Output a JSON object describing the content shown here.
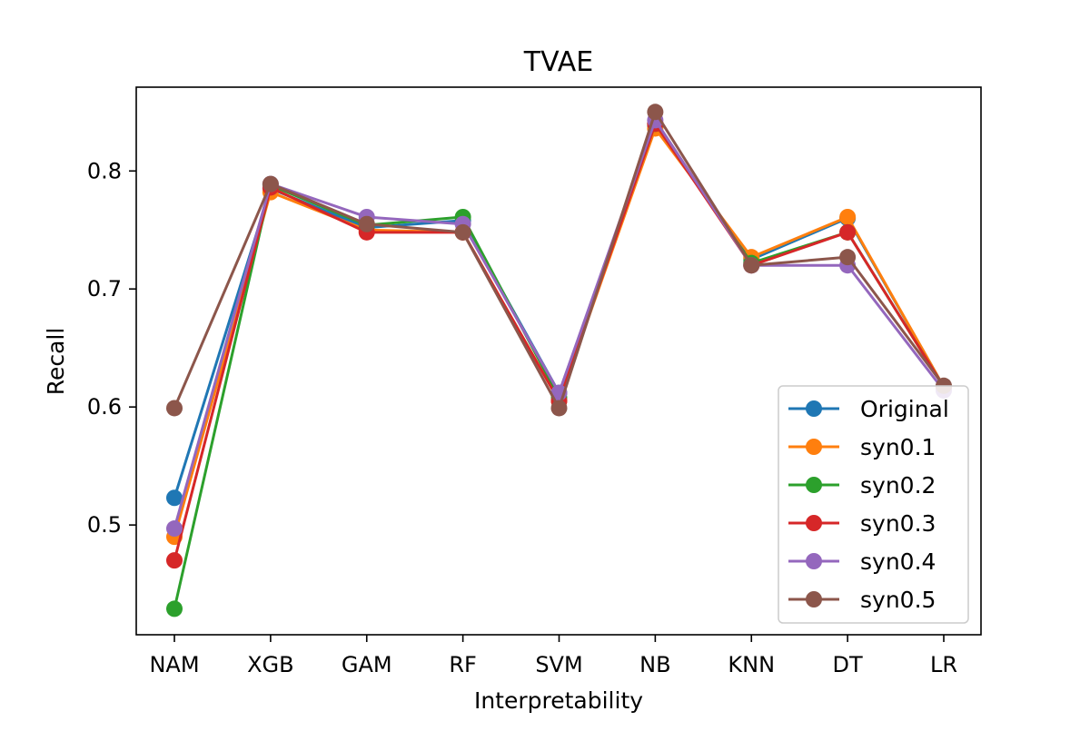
{
  "chart_data": {
    "type": "line",
    "title": "TVAE",
    "xlabel": "Interpretability",
    "ylabel": "Recall",
    "categories": [
      "NAM",
      "XGB",
      "GAM",
      "RF",
      "SVM",
      "NB",
      "KNN",
      "DT",
      "LR"
    ],
    "ylim": [
      0.407,
      0.871
    ],
    "yticks": [
      0.5,
      0.6,
      0.7,
      0.8
    ],
    "ytick_labels": [
      "0.5",
      "0.6",
      "0.7",
      "0.8"
    ],
    "grid": false,
    "legend_position": "lower-right",
    "series": [
      {
        "name": "Original",
        "color": "#1f77b4",
        "values": [
          0.523,
          0.785,
          0.752,
          0.758,
          0.612,
          0.838,
          0.725,
          0.76,
          0.617
        ]
      },
      {
        "name": "syn0.1",
        "color": "#ff7f0e",
        "values": [
          0.49,
          0.782,
          0.75,
          0.748,
          0.605,
          0.836,
          0.727,
          0.761,
          0.617
        ]
      },
      {
        "name": "syn0.2",
        "color": "#2ca02c",
        "values": [
          0.429,
          0.788,
          0.754,
          0.761,
          0.608,
          0.84,
          0.722,
          0.748,
          0.617
        ]
      },
      {
        "name": "syn0.3",
        "color": "#d62728",
        "values": [
          0.47,
          0.786,
          0.748,
          0.748,
          0.605,
          0.84,
          0.72,
          0.748,
          0.617
        ]
      },
      {
        "name": "syn0.4",
        "color": "#9467bd",
        "values": [
          0.497,
          0.789,
          0.761,
          0.755,
          0.612,
          0.843,
          0.72,
          0.72,
          0.614
        ]
      },
      {
        "name": "syn0.5",
        "color": "#8c564b",
        "values": [
          0.599,
          0.789,
          0.755,
          0.748,
          0.599,
          0.85,
          0.72,
          0.727,
          0.618
        ]
      }
    ]
  }
}
